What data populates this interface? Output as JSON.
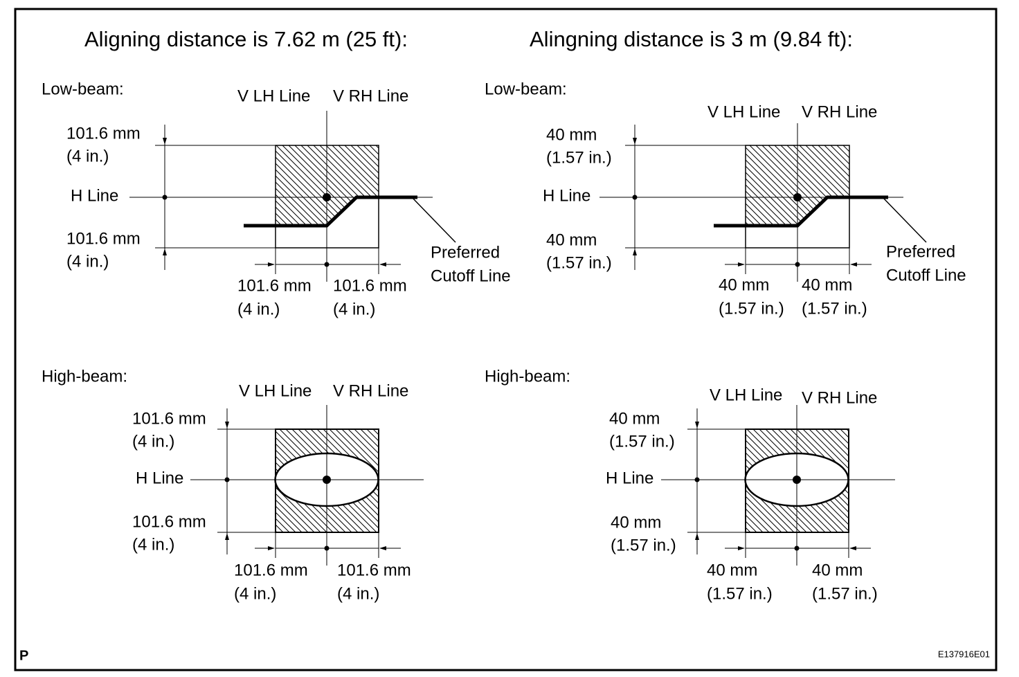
{
  "titles": [
    "Aligning distance is 7.62 m (25 ft):",
    "Alingning distance is 3 m (9.84 ft):"
  ],
  "panels": [
    {
      "beam": "Low-beam:",
      "v_lh": "V LH Line",
      "v_rh": "V RH Line",
      "h_line": "H Line",
      "top": [
        "101.6 mm",
        "(4 in.)"
      ],
      "bottom": [
        "101.6 mm",
        "(4 in.)"
      ],
      "left": [
        "101.6 mm",
        "(4 in.)"
      ],
      "right": [
        "101.6 mm",
        "(4 in.)"
      ],
      "callout": [
        "Preferred",
        "Cutoff Line"
      ]
    },
    {
      "beam": "Low-beam:",
      "v_lh": "V LH Line",
      "v_rh": "V RH Line",
      "h_line": "H Line",
      "top": [
        "40 mm",
        "(1.57 in.)"
      ],
      "bottom": [
        "40 mm",
        "(1.57 in.)"
      ],
      "left": [
        "40 mm",
        "(1.57 in.)"
      ],
      "right": [
        "40 mm",
        "(1.57 in.)"
      ],
      "callout": [
        "Preferred",
        "Cutoff Line"
      ]
    },
    {
      "beam": "High-beam:",
      "v_lh": "V LH Line",
      "v_rh": "V RH Line",
      "h_line": "H Line",
      "top": [
        "101.6 mm",
        "(4 in.)"
      ],
      "bottom": [
        "101.6 mm",
        "(4 in.)"
      ],
      "left": [
        "101.6 mm",
        "(4 in.)"
      ],
      "right": [
        "101.6 mm",
        "(4 in.)"
      ]
    },
    {
      "beam": "High-beam:",
      "v_lh": "V LH Line",
      "v_rh": "V RH Line",
      "h_line": "H Line",
      "top": [
        "40 mm",
        "(1.57 in.)"
      ],
      "bottom": [
        "40 mm",
        "(1.57 in.)"
      ],
      "left": [
        "40 mm",
        "(1.57 in.)"
      ],
      "right": [
        "40 mm",
        "(1.57 in.)"
      ]
    }
  ],
  "footer": {
    "left": "P",
    "right": "E137916E01"
  }
}
